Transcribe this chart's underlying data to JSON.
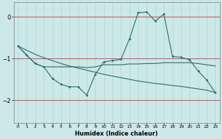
{
  "xlabel": "Humidex (Indice chaleur)",
  "background_color": "#cce8e8",
  "line_color": "#2e7070",
  "grid_color": "#aad4d4",
  "red_line_color": "#dd4444",
  "xlim": [
    -0.5,
    23.5
  ],
  "ylim": [
    -2.55,
    0.35
  ],
  "yticks": [
    0,
    -1,
    -2
  ],
  "xticks": [
    0,
    1,
    2,
    3,
    4,
    5,
    6,
    7,
    8,
    9,
    10,
    11,
    12,
    13,
    14,
    15,
    16,
    17,
    18,
    19,
    20,
    21,
    22,
    23
  ],
  "line_zigzag_x": [
    0,
    1,
    2,
    3,
    4,
    5,
    6,
    7,
    8,
    9,
    10,
    11,
    12,
    13,
    14,
    15,
    16,
    17,
    18,
    19,
    20,
    21,
    22,
    23
  ],
  "line_zigzag_y": [
    -0.7,
    -0.92,
    -1.12,
    -1.2,
    -1.48,
    -1.62,
    -1.68,
    -1.68,
    -1.88,
    -1.38,
    -1.08,
    -1.05,
    -1.02,
    -0.52,
    0.1,
    0.12,
    -0.1,
    0.07,
    -0.95,
    -0.97,
    -1.03,
    -1.3,
    -1.52,
    -1.82
  ],
  "line_flat_x": [
    0,
    1,
    2,
    3,
    4,
    5,
    6,
    7,
    8,
    9,
    10,
    11,
    12,
    13,
    14,
    15,
    16,
    17,
    18,
    19,
    20,
    21,
    22,
    23
  ],
  "line_flat_y": [
    -0.7,
    -0.92,
    -1.12,
    -1.2,
    -1.2,
    -1.2,
    -1.2,
    -1.2,
    -1.22,
    -1.2,
    -1.15,
    -1.15,
    -1.15,
    -1.13,
    -1.13,
    -1.12,
    -1.12,
    -1.1,
    -1.1,
    -1.1,
    -1.1,
    -1.12,
    -1.15,
    -1.18
  ],
  "line_diag_x": [
    0,
    1,
    2,
    3,
    4,
    5,
    6,
    7,
    8,
    9,
    10,
    11,
    12,
    13,
    14,
    15,
    16,
    17,
    18,
    19,
    20,
    21,
    22,
    23
  ],
  "line_diag_y": [
    -0.7,
    -0.8,
    -0.9,
    -0.98,
    -1.05,
    -1.12,
    -1.18,
    -1.23,
    -1.28,
    -1.33,
    -1.38,
    -1.42,
    -1.46,
    -1.5,
    -1.54,
    -1.57,
    -1.6,
    -1.62,
    -1.65,
    -1.67,
    -1.7,
    -1.73,
    -1.76,
    -1.82
  ]
}
